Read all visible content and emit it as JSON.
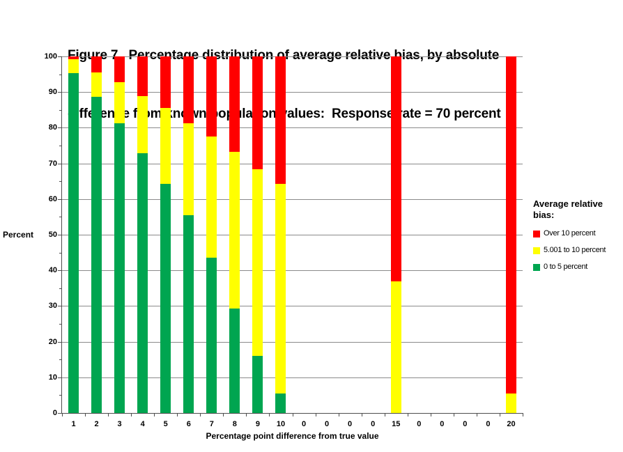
{
  "title": {
    "line1": "Figure 7.  Percentage distribution of average relative bias, by absolute",
    "line2": "difference from known population values:  Response rate = 70 percent"
  },
  "y_axis": {
    "label": "Percent",
    "min": 0,
    "max": 100,
    "major_step": 10,
    "minor_step": 5,
    "tick_labels": [
      "0",
      "10",
      "20",
      "30",
      "40",
      "50",
      "60",
      "70",
      "80",
      "90",
      "100"
    ]
  },
  "x_axis": {
    "label": "Percentage point difference from true value"
  },
  "legend": {
    "title": "Average relative bias:",
    "items": [
      {
        "label": "Over 10 percent",
        "color": "#FF0000"
      },
      {
        "label": "5.001 to 10 percent",
        "color": "#FFFF00"
      },
      {
        "label": "0 to 5 percent",
        "color": "#00A550"
      }
    ]
  },
  "chart_data": {
    "type": "bar",
    "stacked": true,
    "title": "Figure 7. Percentage distribution of average relative bias, by absolute difference from known population values: Response rate = 70 percent",
    "xlabel": "Percentage point difference from true value",
    "ylabel": "Percent",
    "ylim": [
      0,
      100
    ],
    "grid": true,
    "legend_position": "right",
    "categories": [
      "1",
      "2",
      "3",
      "4",
      "5",
      "6",
      "7",
      "8",
      "9",
      "10",
      "0",
      "0",
      "0",
      "0",
      "15",
      "0",
      "0",
      "0",
      "0",
      "20"
    ],
    "series": [
      {
        "name": "0 to 5 percent",
        "color": "#00A550",
        "values": [
          95.3,
          88.6,
          81.2,
          72.9,
          64.3,
          55.4,
          43.6,
          29.3,
          16.0,
          5.4,
          0,
          0,
          0,
          0,
          0,
          0,
          0,
          0,
          0,
          0
        ]
      },
      {
        "name": "5.001 to 10 percent",
        "color": "#FFFF00",
        "values": [
          3.9,
          6.9,
          11.5,
          15.9,
          21.2,
          25.9,
          34.0,
          43.9,
          52.4,
          58.8,
          0,
          0,
          0,
          0,
          37.0,
          0,
          0,
          0,
          0,
          5.4
        ]
      },
      {
        "name": "Over 10 percent",
        "color": "#FF0000",
        "values": [
          0.8,
          4.5,
          7.3,
          11.2,
          14.5,
          18.7,
          22.4,
          26.8,
          31.6,
          35.8,
          0,
          0,
          0,
          0,
          63.0,
          0,
          0,
          0,
          0,
          94.6
        ]
      }
    ]
  }
}
